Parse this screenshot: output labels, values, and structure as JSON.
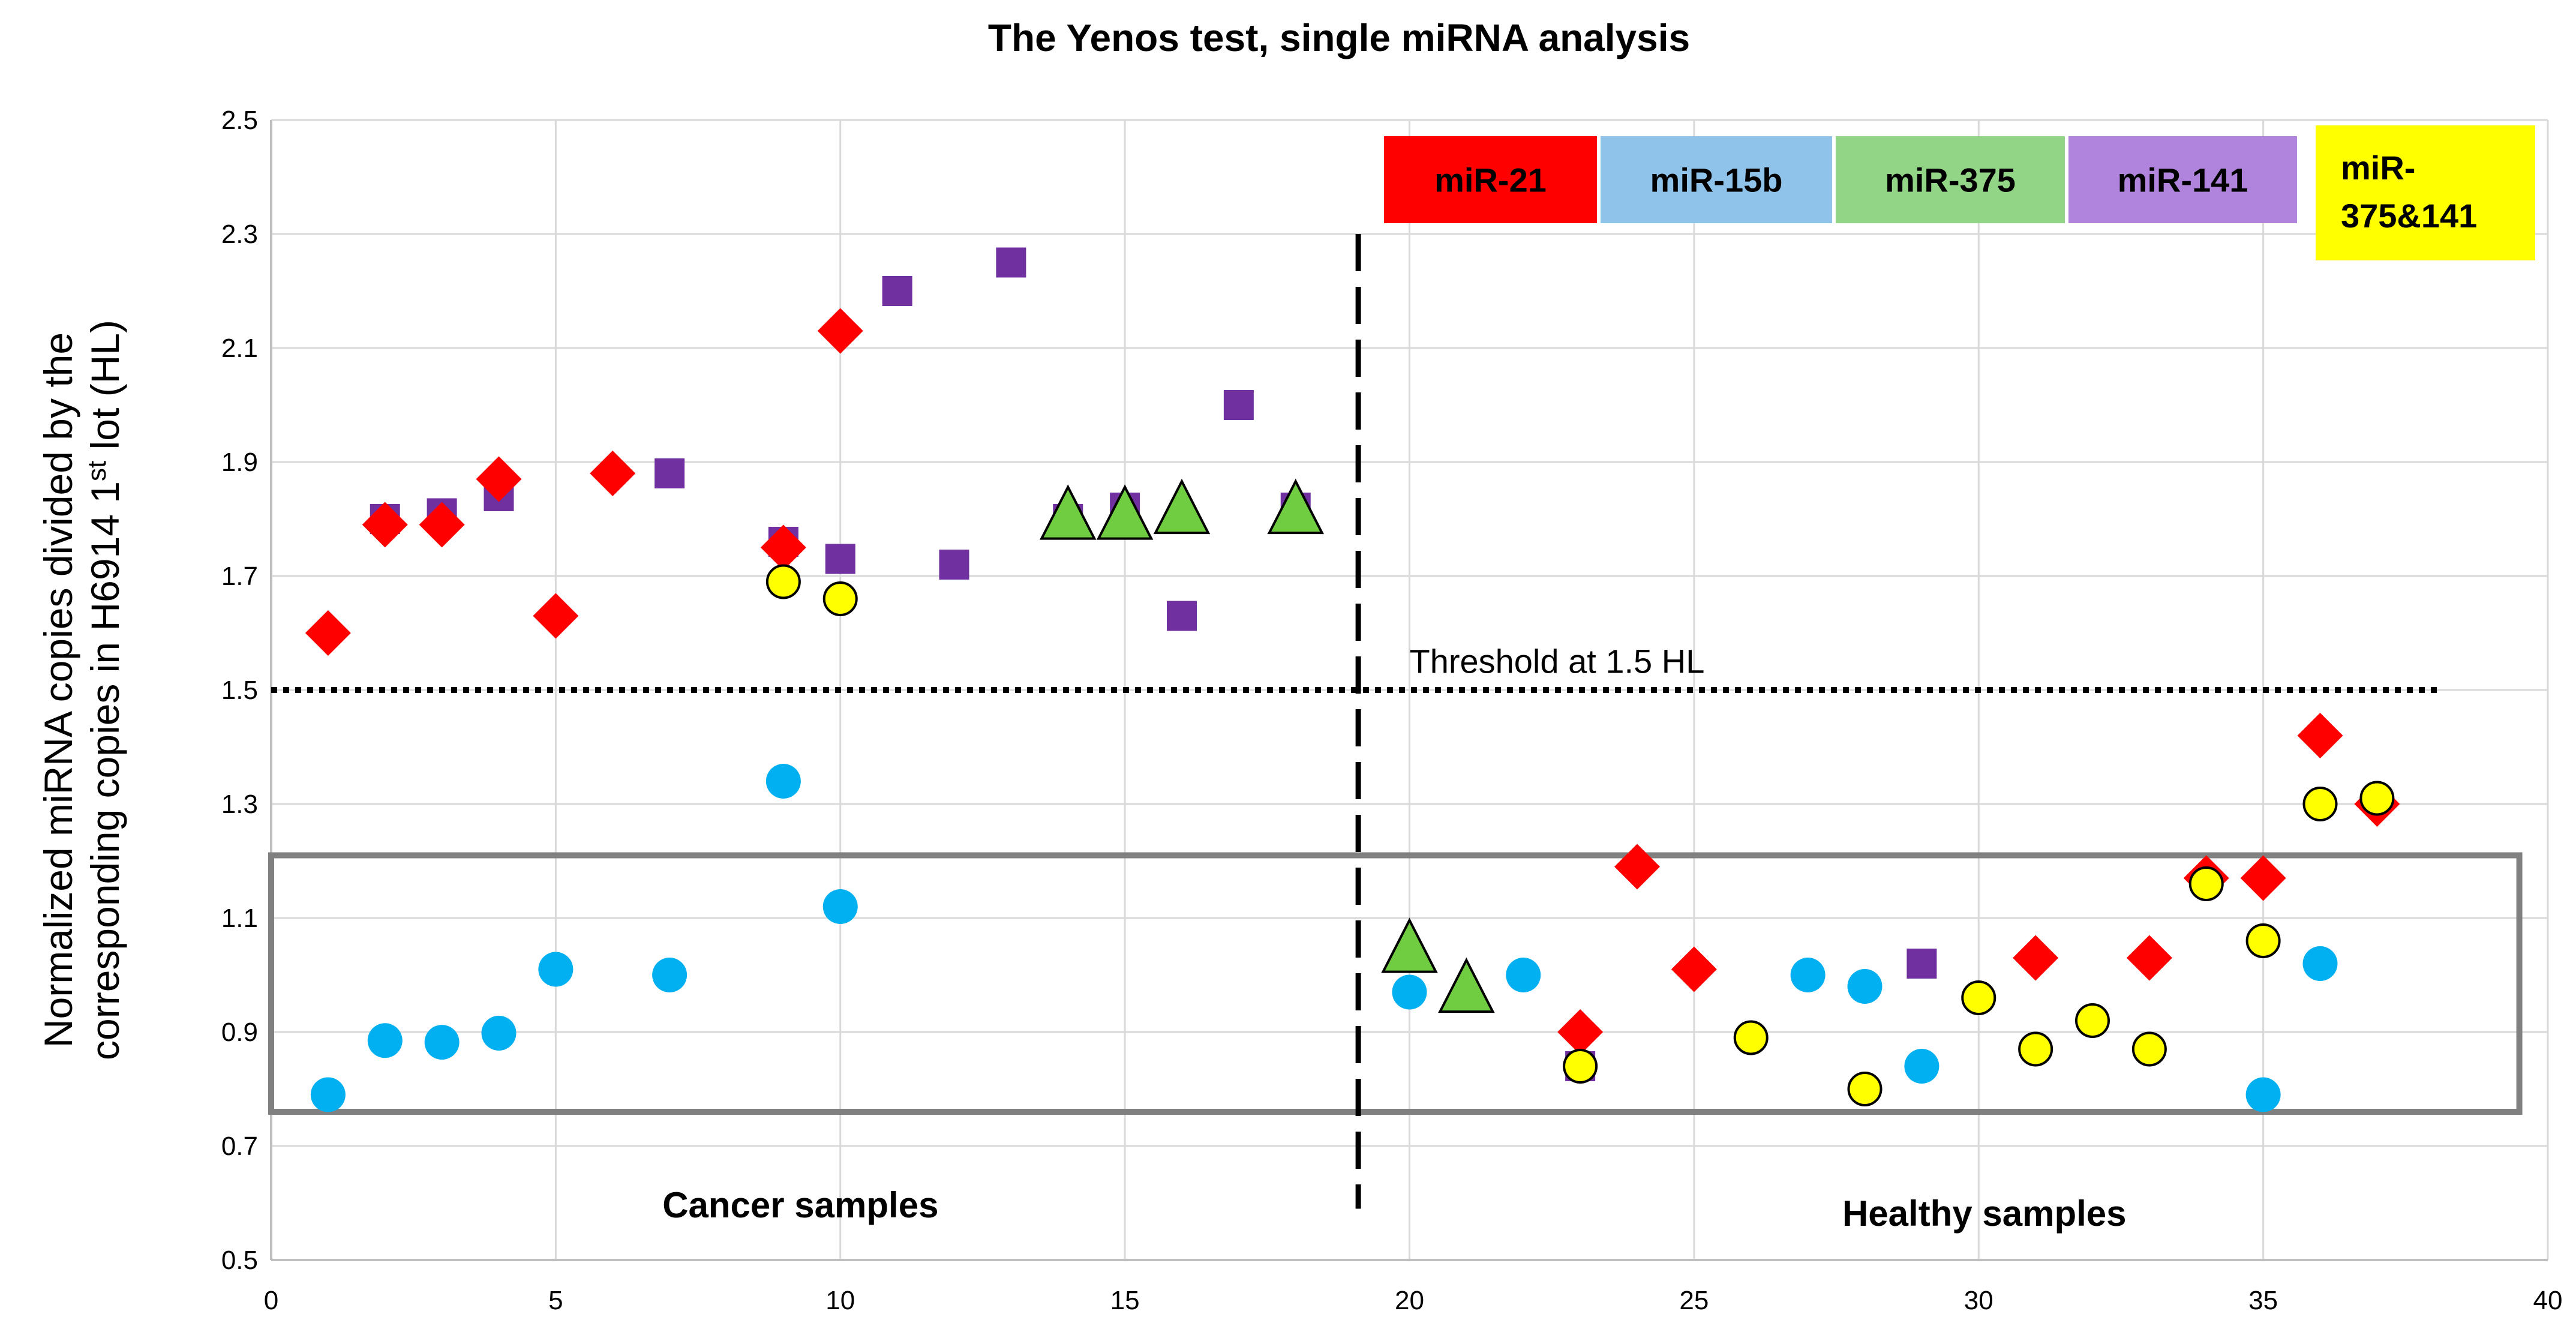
{
  "chart_data": {
    "type": "scatter",
    "title": "The Yenos test, single miRNA analysis",
    "ylabel_line1": "Normalized miRNA copies divided by the",
    "ylabel_line2_prefix": "corresponding copies in H6914 1",
    "ylabel_line2_sup": "st",
    "ylabel_line2_suffix": " lot (HL)",
    "xlim": [
      0,
      40
    ],
    "ylim": [
      0.5,
      2.5
    ],
    "x_ticks": [
      0,
      5,
      10,
      15,
      20,
      25,
      30,
      35,
      40
    ],
    "y_ticks": [
      0.5,
      0.7,
      0.9,
      1.1,
      1.3,
      1.5,
      1.7,
      1.9,
      2.1,
      2.3,
      2.5
    ],
    "grid": true,
    "threshold": {
      "value": 1.5,
      "x_range": [
        0,
        38.1
      ],
      "label": "Threshold at 1.5 HL"
    },
    "divider_x": 19.1,
    "group_labels": {
      "cancer": "Cancer samples",
      "healthy": "Healthy samples"
    },
    "normal_range_box": {
      "x_range": [
        0,
        39.5
      ],
      "y_range": [
        0.76,
        1.21
      ]
    },
    "legend": [
      {
        "label": "miR-21",
        "color": "#FF0000"
      },
      {
        "label": "miR-15b",
        "color": "#8FC3E9"
      },
      {
        "label": "miR-375",
        "color": "#92D587"
      },
      {
        "label": "miR-141",
        "color": "#B084DC"
      },
      {
        "label_line1": "miR-",
        "label_line2": "375&141",
        "color": "#FFFF00"
      }
    ],
    "series": [
      {
        "name": "miR-141",
        "color": "#7030A0",
        "marker": "square",
        "points": [
          [
            2,
            1.8
          ],
          [
            3,
            1.81
          ],
          [
            4,
            1.84
          ],
          [
            7,
            1.88
          ],
          [
            9,
            1.76
          ],
          [
            10,
            1.73
          ],
          [
            11,
            2.2
          ],
          [
            12,
            1.72
          ],
          [
            13,
            2.25
          ],
          [
            14,
            1.8
          ],
          [
            15,
            1.82
          ],
          [
            16,
            1.63
          ],
          [
            17,
            2.0
          ],
          [
            18,
            1.82
          ],
          [
            23,
            0.84
          ],
          [
            29,
            1.02
          ]
        ]
      },
      {
        "name": "miR-21",
        "color": "#FF0000",
        "marker": "diamond",
        "points": [
          [
            1,
            1.6
          ],
          [
            2,
            1.79
          ],
          [
            3,
            1.79
          ],
          [
            4,
            1.87
          ],
          [
            5,
            1.63
          ],
          [
            6,
            1.88
          ],
          [
            9,
            1.75
          ],
          [
            10,
            2.13
          ],
          [
            23,
            0.9
          ],
          [
            24,
            1.19
          ],
          [
            25,
            1.01
          ],
          [
            31,
            1.03
          ],
          [
            33,
            1.03
          ],
          [
            34,
            1.17
          ],
          [
            35,
            1.17
          ],
          [
            36,
            1.42
          ],
          [
            37,
            1.3
          ]
        ]
      },
      {
        "name": "miR-15b",
        "color": "#00B0F0",
        "marker": "circle",
        "points": [
          [
            1,
            0.79
          ],
          [
            2,
            0.885
          ],
          [
            3,
            0.882
          ],
          [
            4,
            0.898
          ],
          [
            5,
            1.01
          ],
          [
            7,
            1.0
          ],
          [
            9,
            1.34
          ],
          [
            10,
            1.12
          ],
          [
            20,
            0.97
          ],
          [
            22,
            1.0
          ],
          [
            27,
            1.0
          ],
          [
            28,
            0.98
          ],
          [
            29,
            0.84
          ],
          [
            35,
            0.79
          ],
          [
            36,
            1.02
          ]
        ]
      },
      {
        "name": "miR-375",
        "color": "#70CC40",
        "marker": "triangle",
        "points": [
          [
            14,
            1.8
          ],
          [
            15,
            1.8
          ],
          [
            16,
            1.81
          ],
          [
            18,
            1.81
          ],
          [
            20,
            1.04
          ],
          [
            21,
            0.97
          ]
        ]
      },
      {
        "name": "miR-375&141",
        "color": "#FFFF00",
        "marker": "circle-outline",
        "points": [
          [
            9,
            1.69
          ],
          [
            10,
            1.66
          ],
          [
            23,
            0.84
          ],
          [
            26,
            0.89
          ],
          [
            28,
            0.8
          ],
          [
            30,
            0.96
          ],
          [
            31,
            0.87
          ],
          [
            32,
            0.92
          ],
          [
            33,
            0.87
          ],
          [
            34,
            1.16
          ],
          [
            35,
            1.06
          ],
          [
            36,
            1.3
          ],
          [
            37,
            1.31
          ]
        ]
      }
    ]
  }
}
